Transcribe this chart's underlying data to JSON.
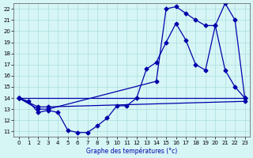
{
  "title": "Graphe des températures (°c)",
  "xlabel": "Graphe des températures (°c)",
  "xlim": [
    -0.5,
    23.5
  ],
  "ylim": [
    10.5,
    22.5
  ],
  "xticks": [
    0,
    1,
    2,
    3,
    4,
    5,
    6,
    7,
    8,
    9,
    10,
    11,
    12,
    13,
    14,
    15,
    16,
    17,
    18,
    19,
    20,
    21,
    22,
    23
  ],
  "yticks": [
    11,
    12,
    13,
    14,
    15,
    16,
    17,
    18,
    19,
    20,
    21,
    22
  ],
  "line_color": "#0000aa",
  "background_color": "#d6f5f5",
  "grid_color": "#aadddd",
  "line1": {
    "x": [
      0,
      1,
      2,
      3,
      4,
      5,
      6,
      7,
      8,
      9,
      10,
      11,
      12,
      13,
      14,
      15,
      16,
      17,
      18,
      19,
      20,
      21,
      22,
      23
    ],
    "y": [
      14.0,
      13.7,
      12.7,
      12.9,
      12.7,
      11.1,
      10.9,
      10.9,
      11.5,
      12.2,
      13.3,
      13.3,
      14.0,
      16.6,
      17.2,
      19.0,
      20.7,
      19.2,
      17.0,
      16.5,
      20.5,
      16.5,
      15.0,
      14.0
    ]
  },
  "line2": {
    "x": [
      0,
      2,
      3,
      14,
      15,
      16,
      17,
      18,
      19,
      20,
      21,
      22,
      23
    ],
    "y": [
      14.0,
      13.0,
      13.0,
      15.5,
      22.0,
      22.2,
      21.6,
      21.0,
      20.5,
      20.5,
      22.5,
      21.0,
      14.0
    ]
  },
  "line3": {
    "x": [
      0,
      23
    ],
    "y": [
      14.0,
      14.0
    ]
  },
  "line4": {
    "x": [
      0,
      2,
      3,
      23
    ],
    "y": [
      14.0,
      13.2,
      13.2,
      13.7
    ]
  }
}
